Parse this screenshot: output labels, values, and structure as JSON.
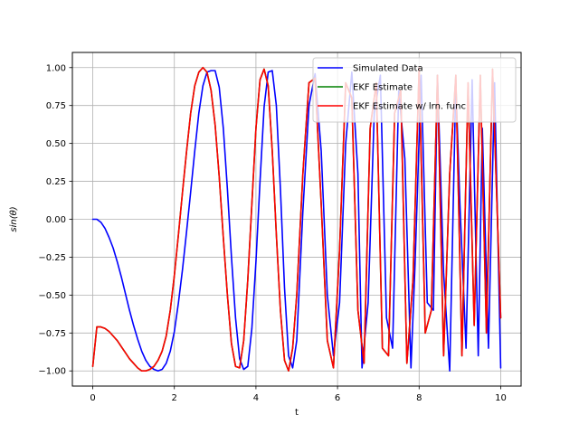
{
  "chart_data": {
    "type": "line",
    "title": "",
    "xlabel": "t",
    "ylabel": "sin(θ)",
    "xlim": [
      -0.5,
      10.5
    ],
    "ylim": [
      -1.1,
      1.1
    ],
    "grid": true,
    "legend_position": "top-right",
    "x_ticks": [
      "0",
      "2",
      "4",
      "6",
      "8",
      "10"
    ],
    "y_ticks": [
      "1.00",
      "0.75",
      "0.50",
      "0.25",
      "0.00",
      "−0.25",
      "−0.50",
      "−0.75",
      "−1.00"
    ],
    "series": [
      {
        "name": "Simulated Data",
        "color": "#0000ff",
        "x": [
          0,
          0.1,
          0.2,
          0.3,
          0.4,
          0.5,
          0.6,
          0.7,
          0.8,
          0.9,
          1.0,
          1.1,
          1.2,
          1.3,
          1.4,
          1.5,
          1.6,
          1.7,
          1.8,
          1.9,
          2.0,
          2.1,
          2.2,
          2.3,
          2.4,
          2.5,
          2.6,
          2.7,
          2.8,
          2.9,
          3.0,
          3.1,
          3.2,
          3.3,
          3.4,
          3.5,
          3.6,
          3.7,
          3.8,
          3.9,
          4.0,
          4.1,
          4.2,
          4.3,
          4.4,
          4.5,
          4.6,
          4.7,
          4.8,
          4.9,
          5.0,
          5.15,
          5.3,
          5.45,
          5.6,
          5.75,
          5.9,
          6.05,
          6.2,
          6.35,
          6.5,
          6.6,
          6.75,
          6.9,
          7.05,
          7.2,
          7.35,
          7.5,
          7.65,
          7.8,
          7.9,
          8.05,
          8.2,
          8.35,
          8.45,
          8.6,
          8.75,
          8.9,
          9.0,
          9.15,
          9.3,
          9.45,
          9.55,
          9.7,
          9.85,
          10.0
        ],
        "y": [
          0,
          0,
          -0.02,
          -0.06,
          -0.12,
          -0.19,
          -0.28,
          -0.38,
          -0.49,
          -0.6,
          -0.7,
          -0.79,
          -0.87,
          -0.93,
          -0.97,
          -0.99,
          -1.0,
          -0.99,
          -0.95,
          -0.87,
          -0.74,
          -0.55,
          -0.33,
          -0.08,
          0.18,
          0.45,
          0.7,
          0.88,
          0.97,
          0.98,
          0.98,
          0.87,
          0.6,
          0.2,
          -0.25,
          -0.65,
          -0.92,
          -0.99,
          -0.97,
          -0.72,
          -0.28,
          0.25,
          0.74,
          0.97,
          0.98,
          0.75,
          0.2,
          -0.45,
          -0.9,
          -0.98,
          -0.8,
          0.05,
          0.75,
          0.96,
          0.45,
          -0.5,
          -0.9,
          -0.55,
          0.5,
          0.97,
          0.3,
          -0.98,
          -0.55,
          0.7,
          0.95,
          -0.65,
          -0.85,
          0.85,
          0.4,
          -0.98,
          -0.3,
          0.95,
          -0.55,
          -0.6,
          0.95,
          -0.35,
          -1.0,
          0.9,
          0.1,
          -0.85,
          0.92,
          -0.9,
          0.6,
          -0.85,
          0.9,
          -0.98
        ]
      },
      {
        "name": "EKF Estimate",
        "color": "#008000",
        "x": [
          0,
          0.1,
          0.2,
          0.3,
          0.4,
          0.5,
          0.6,
          0.7,
          0.8,
          0.9,
          1.0,
          1.1,
          1.2,
          1.3,
          1.4,
          1.5,
          1.6,
          1.7,
          1.8,
          1.9,
          2.0,
          2.1,
          2.2,
          2.3,
          2.4,
          2.5,
          2.6,
          2.7,
          2.8,
          2.9,
          3.0,
          3.1,
          3.2,
          3.3,
          3.4,
          3.5,
          3.6,
          3.7,
          3.8,
          3.9,
          4.0,
          4.1,
          4.2,
          4.3,
          4.4,
          4.5,
          4.6,
          4.7,
          4.8,
          4.9,
          5.0,
          5.15,
          5.3,
          5.45,
          5.6,
          5.75,
          5.9,
          6.05,
          6.2,
          6.35,
          6.5,
          6.65,
          6.8,
          6.95,
          7.1,
          7.25,
          7.4,
          7.55,
          7.7,
          7.85,
          8.0,
          8.15,
          8.3,
          8.45,
          8.6,
          8.75,
          8.9,
          9.05,
          9.2,
          9.35,
          9.5,
          9.65,
          9.8,
          10.0
        ],
        "y": [
          -0.97,
          -0.71,
          -0.71,
          -0.72,
          -0.74,
          -0.77,
          -0.8,
          -0.84,
          -0.88,
          -0.92,
          -0.95,
          -0.98,
          -1.0,
          -1.0,
          -0.99,
          -0.97,
          -0.93,
          -0.87,
          -0.77,
          -0.6,
          -0.37,
          -0.1,
          0.18,
          0.45,
          0.7,
          0.88,
          0.97,
          1.0,
          0.97,
          0.85,
          0.62,
          0.28,
          -0.12,
          -0.5,
          -0.82,
          -0.97,
          -0.98,
          -0.8,
          -0.4,
          0.1,
          0.6,
          0.92,
          0.99,
          0.88,
          0.45,
          -0.1,
          -0.6,
          -0.93,
          -1.0,
          -0.85,
          -0.5,
          0.3,
          0.9,
          0.93,
          0.1,
          -0.8,
          -0.98,
          -0.2,
          0.9,
          0.8,
          -0.6,
          -0.95,
          0.6,
          0.9,
          -0.85,
          -0.9,
          0.7,
          0.85,
          -0.95,
          -0.4,
          1.0,
          -0.75,
          -0.6,
          0.95,
          -0.9,
          0.3,
          0.95,
          -0.9,
          0.9,
          -0.7,
          0.95,
          -0.75,
          0.99,
          -0.65
        ]
      },
      {
        "name": "EKF Estimate w/ lrn. func",
        "color": "#ff0000",
        "x": [
          0,
          0.1,
          0.2,
          0.3,
          0.4,
          0.5,
          0.6,
          0.7,
          0.8,
          0.9,
          1.0,
          1.1,
          1.2,
          1.3,
          1.4,
          1.5,
          1.6,
          1.7,
          1.8,
          1.9,
          2.0,
          2.1,
          2.2,
          2.3,
          2.4,
          2.5,
          2.6,
          2.7,
          2.8,
          2.9,
          3.0,
          3.1,
          3.2,
          3.3,
          3.4,
          3.5,
          3.6,
          3.7,
          3.8,
          3.9,
          4.0,
          4.1,
          4.2,
          4.3,
          4.4,
          4.5,
          4.6,
          4.7,
          4.8,
          4.9,
          5.0,
          5.15,
          5.3,
          5.45,
          5.6,
          5.75,
          5.9,
          6.05,
          6.2,
          6.35,
          6.5,
          6.65,
          6.8,
          6.95,
          7.1,
          7.25,
          7.4,
          7.55,
          7.7,
          7.85,
          8.0,
          8.15,
          8.3,
          8.45,
          8.6,
          8.75,
          8.9,
          9.05,
          9.2,
          9.35,
          9.5,
          9.65,
          9.8,
          10.0
        ],
        "y": [
          -0.97,
          -0.71,
          -0.71,
          -0.72,
          -0.74,
          -0.77,
          -0.8,
          -0.84,
          -0.88,
          -0.92,
          -0.95,
          -0.98,
          -1.0,
          -1.0,
          -0.99,
          -0.97,
          -0.93,
          -0.87,
          -0.77,
          -0.6,
          -0.37,
          -0.1,
          0.18,
          0.45,
          0.7,
          0.88,
          0.97,
          1.0,
          0.97,
          0.85,
          0.62,
          0.28,
          -0.12,
          -0.5,
          -0.82,
          -0.97,
          -0.98,
          -0.8,
          -0.4,
          0.1,
          0.6,
          0.92,
          0.99,
          0.88,
          0.45,
          -0.1,
          -0.6,
          -0.93,
          -1.0,
          -0.85,
          -0.5,
          0.3,
          0.9,
          0.93,
          0.1,
          -0.8,
          -0.98,
          -0.2,
          0.9,
          0.8,
          -0.6,
          -0.95,
          0.6,
          0.9,
          -0.85,
          -0.9,
          0.7,
          0.85,
          -0.95,
          -0.4,
          1.0,
          -0.75,
          -0.6,
          0.95,
          -0.9,
          0.3,
          0.95,
          -0.9,
          0.9,
          -0.7,
          0.95,
          -0.75,
          0.99,
          -0.65
        ]
      }
    ]
  }
}
